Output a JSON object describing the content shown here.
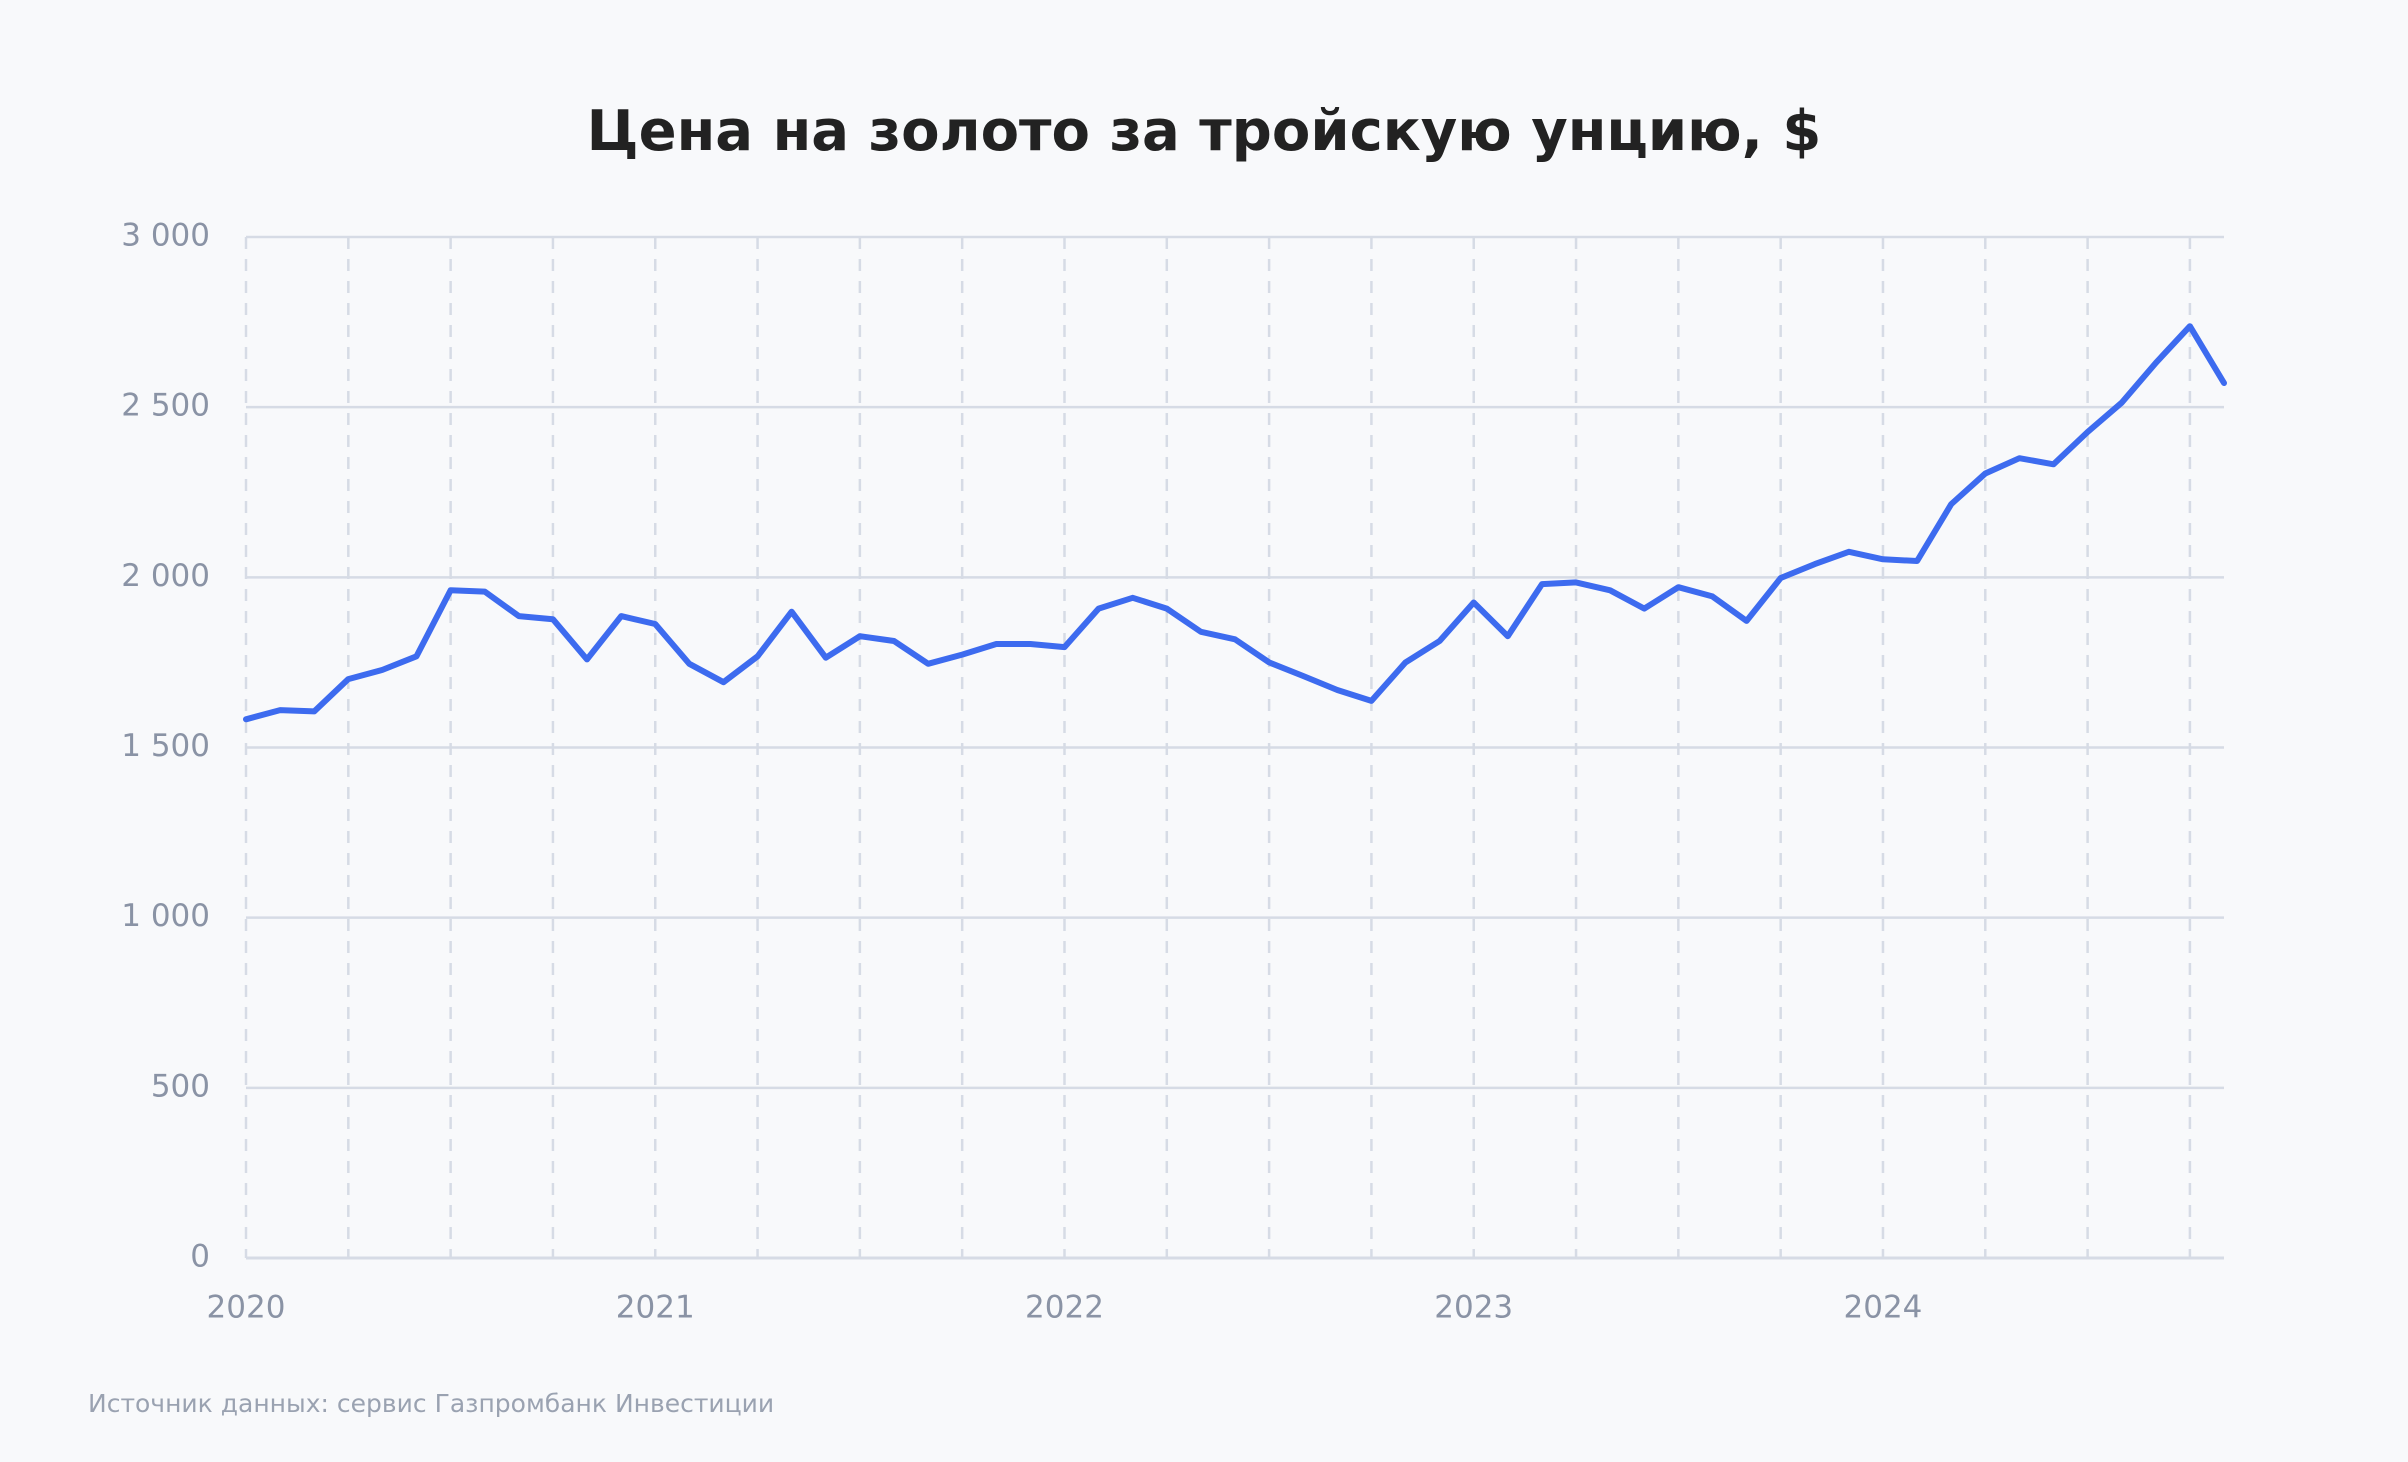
{
  "chart_data": {
    "type": "line",
    "title": "Цена на золото за тройскую унцию, $",
    "source": "Источник данных: сервис Газпромбанк Инвестиции",
    "x": [
      2020,
      2020.0833,
      2020.1667,
      2020.25,
      2020.3333,
      2020.4167,
      2020.5,
      2020.5833,
      2020.6667,
      2020.75,
      2020.8333,
      2020.9167,
      2021,
      2021.0833,
      2021.1667,
      2021.25,
      2021.3333,
      2021.4167,
      2021.5,
      2021.5833,
      2021.6667,
      2021.75,
      2021.8333,
      2021.9167,
      2022,
      2022.0833,
      2022.1667,
      2022.25,
      2022.3333,
      2022.4167,
      2022.5,
      2022.5833,
      2022.6667,
      2022.75,
      2022.8333,
      2022.9167,
      2023,
      2023.0833,
      2023.1667,
      2023.25,
      2023.3333,
      2023.4167,
      2023.5,
      2023.5833,
      2023.6667,
      2023.75,
      2023.8333,
      2023.9167,
      2024,
      2024.0833,
      2024.1667,
      2024.25,
      2024.3333,
      2024.4167,
      2024.5,
      2024.5833,
      2024.6667,
      2024.75,
      2024.8333
    ],
    "series": [
      {
        "name": "Цена",
        "color": "#3d6bef",
        "values": [
          1583,
          1610,
          1606,
          1701,
          1728,
          1768,
          1962,
          1958,
          1886,
          1877,
          1759,
          1886,
          1863,
          1746,
          1692,
          1768,
          1899,
          1764,
          1827,
          1813,
          1746,
          1773,
          1804,
          1804,
          1795,
          1908,
          1940,
          1908,
          1840,
          1818,
          1750,
          1710,
          1669,
          1637,
          1750,
          1813,
          1926,
          1827,
          1980,
          1985,
          1962,
          1908,
          1971,
          1944,
          1872,
          1998,
          2039,
          2075,
          2053,
          2048,
          2215,
          2305,
          2350,
          2332,
          2427,
          2513,
          2630,
          2738,
          2571
        ]
      }
    ],
    "xlim": [
      2020,
      2024.8333
    ],
    "xticks": [
      2020,
      2021,
      2022,
      2023,
      2024
    ],
    "x_minor_ticks": [
      2020.25,
      2020.5,
      2020.75,
      2021.25,
      2021.5,
      2021.75,
      2022.25,
      2022.5,
      2022.75,
      2023.25,
      2023.5,
      2023.75,
      2024.25,
      2024.5,
      2024.75
    ],
    "ylim": [
      0,
      3000
    ],
    "yticks": [
      0,
      500,
      {
        "value": 1000,
        "label": "1 000"
      },
      {
        "value": 1500,
        "label": "1 500"
      },
      {
        "value": 2000,
        "label": "2 000"
      },
      {
        "value": 2500,
        "label": "2 500"
      },
      {
        "value": 3000,
        "label": "3 000"
      }
    ],
    "grid": true
  }
}
